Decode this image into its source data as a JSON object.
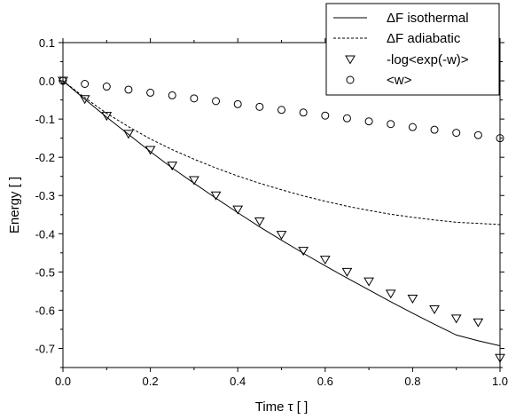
{
  "chart_data": {
    "type": "line",
    "xlabel": "Time τ [ ]",
    "ylabel": "Energy [ ]",
    "xlim": [
      0.0,
      1.0
    ],
    "ylim": [
      -0.75,
      0.1
    ],
    "xticks": [
      "0.0",
      "0.2",
      "0.4",
      "0.6",
      "0.8",
      "1.0"
    ],
    "yticks": [
      "0.1",
      "0.0",
      "-0.1",
      "-0.2",
      "-0.3",
      "-0.4",
      "-0.5",
      "-0.6",
      "-0.7"
    ],
    "xtick_values": [
      0.0,
      0.2,
      0.4,
      0.6,
      0.8,
      1.0
    ],
    "ytick_values": [
      0.1,
      0.0,
      -0.1,
      -0.2,
      -0.3,
      -0.4,
      -0.5,
      -0.6,
      -0.7
    ],
    "grid": false,
    "legend_position": "top-right",
    "series": [
      {
        "name": "ΔF isothermal",
        "style": "solid-line",
        "x": [
          0.0,
          0.05,
          0.1,
          0.15,
          0.2,
          0.25,
          0.3,
          0.35,
          0.4,
          0.45,
          0.5,
          0.55,
          0.6,
          0.65,
          0.7,
          0.75,
          0.8,
          0.85,
          0.9,
          0.95,
          1.0
        ],
        "y": [
          0.0,
          -0.048,
          -0.095,
          -0.14,
          -0.185,
          -0.228,
          -0.268,
          -0.307,
          -0.345,
          -0.382,
          -0.417,
          -0.451,
          -0.484,
          -0.516,
          -0.547,
          -0.578,
          -0.608,
          -0.637,
          -0.665,
          -0.68,
          -0.693
        ]
      },
      {
        "name": "ΔF adiabatic",
        "style": "dashed-line",
        "x": [
          0.0,
          0.05,
          0.1,
          0.15,
          0.2,
          0.25,
          0.3,
          0.35,
          0.4,
          0.45,
          0.5,
          0.55,
          0.6,
          0.65,
          0.7,
          0.75,
          0.8,
          0.85,
          0.9,
          0.95,
          1.0
        ],
        "y": [
          0.0,
          -0.044,
          -0.085,
          -0.12,
          -0.152,
          -0.18,
          -0.205,
          -0.228,
          -0.249,
          -0.268,
          -0.285,
          -0.301,
          -0.315,
          -0.328,
          -0.339,
          -0.349,
          -0.357,
          -0.364,
          -0.37,
          -0.373,
          -0.376
        ]
      },
      {
        "name": "-log<exp(-w)>",
        "style": "triangle-down-markers",
        "x": [
          0.0,
          0.05,
          0.1,
          0.15,
          0.2,
          0.25,
          0.3,
          0.35,
          0.4,
          0.45,
          0.5,
          0.55,
          0.6,
          0.65,
          0.7,
          0.75,
          0.8,
          0.85,
          0.9,
          0.95,
          1.0
        ],
        "y": [
          0.0,
          -0.048,
          -0.092,
          -0.139,
          -0.181,
          -0.222,
          -0.26,
          -0.3,
          -0.337,
          -0.368,
          -0.403,
          -0.445,
          -0.468,
          -0.5,
          -0.525,
          -0.557,
          -0.57,
          -0.598,
          -0.622,
          -0.632,
          -0.725
        ]
      },
      {
        "name": "<w>",
        "style": "circle-markers",
        "x": [
          0.0,
          0.05,
          0.1,
          0.15,
          0.2,
          0.25,
          0.3,
          0.35,
          0.4,
          0.45,
          0.5,
          0.55,
          0.6,
          0.65,
          0.7,
          0.75,
          0.8,
          0.85,
          0.9,
          0.95,
          1.0
        ],
        "y": [
          0.0,
          -0.008,
          -0.015,
          -0.023,
          -0.031,
          -0.038,
          -0.046,
          -0.053,
          -0.061,
          -0.068,
          -0.076,
          -0.083,
          -0.091,
          -0.098,
          -0.106,
          -0.113,
          -0.121,
          -0.128,
          -0.136,
          -0.142,
          -0.15
        ]
      }
    ]
  }
}
